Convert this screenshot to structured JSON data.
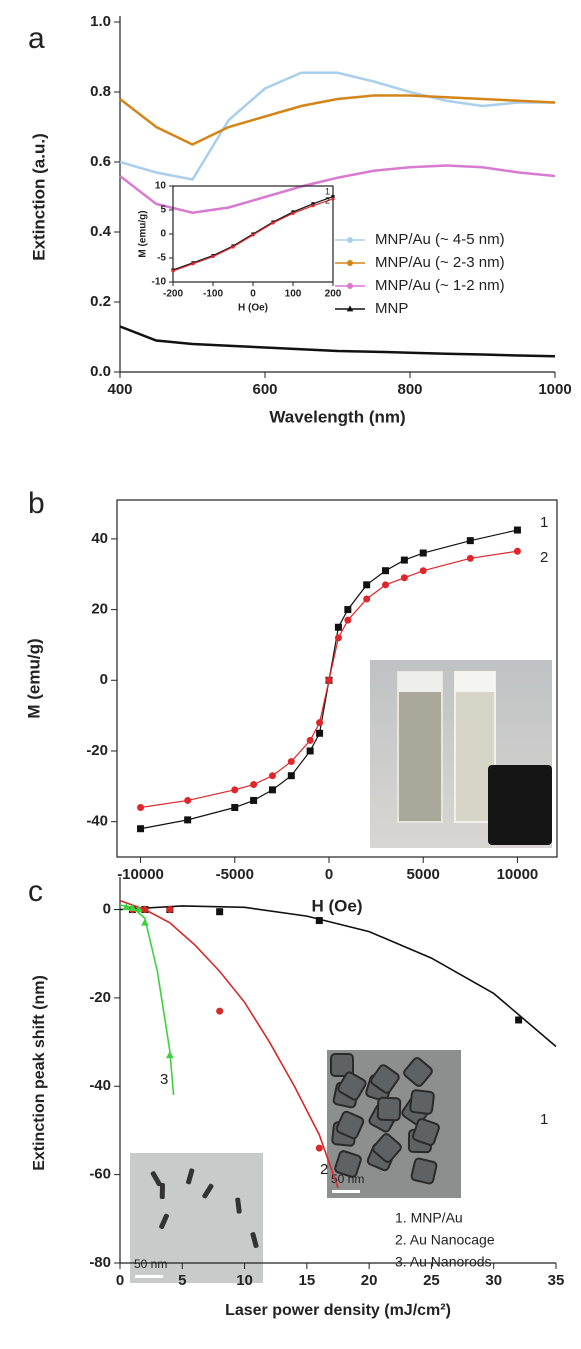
{
  "chart_data": [
    {
      "type": "line",
      "label": "a",
      "xlabel": "Wavelength (nm)",
      "ylabel": "Extinction (a.u.)",
      "x": [
        400,
        450,
        500,
        550,
        600,
        650,
        700,
        750,
        800,
        850,
        900,
        950,
        1000
      ],
      "xlim": [
        400,
        1000
      ],
      "xticks": [
        400,
        600,
        800,
        1000
      ],
      "ylim": [
        0,
        1
      ],
      "yticks": [
        {
          "value": 0,
          "label": "0.0"
        },
        {
          "value": 0.2,
          "label": "0.2"
        },
        {
          "value": 0.4,
          "label": "0.4"
        },
        {
          "value": 0.6,
          "label": "0.6"
        },
        {
          "value": 0.8,
          "label": "0.8"
        },
        {
          "value": 1,
          "label": "1.0"
        }
      ],
      "legend": "lower right",
      "series": [
        {
          "name": "MNP/Au (~ 4-5 nm)",
          "color": "#a9cfec",
          "marker": "circle",
          "values": [
            0.6,
            0.57,
            0.55,
            0.72,
            0.81,
            0.855,
            0.855,
            0.83,
            0.8,
            0.775,
            0.76,
            0.77,
            0.77
          ]
        },
        {
          "name": "MNP/Au (~ 2-3 nm)",
          "color": "#d4851a",
          "marker": "circle",
          "values": [
            0.78,
            0.7,
            0.65,
            0.7,
            0.73,
            0.76,
            0.78,
            0.79,
            0.79,
            0.785,
            0.78,
            0.775,
            0.77
          ]
        },
        {
          "name": "MNP/Au (~ 1-2 nm)",
          "color": "#d77ad0",
          "marker": "circle",
          "values": [
            0.56,
            0.48,
            0.455,
            0.47,
            0.5,
            0.53,
            0.555,
            0.575,
            0.585,
            0.59,
            0.585,
            0.57,
            0.56
          ]
        },
        {
          "name": "MNP",
          "color": "#111111",
          "marker": "triangle",
          "values": [
            0.13,
            0.09,
            0.08,
            0.075,
            0.07,
            0.065,
            0.06,
            0.058,
            0.055,
            0.052,
            0.05,
            0.047,
            0.045
          ]
        }
      ]
    },
    {
      "type": "line",
      "label": "b",
      "xlabel": "H (Oe)",
      "ylabel": "M (emu/g)",
      "box": true,
      "x": [
        -10000,
        -7500,
        -5000,
        -4000,
        -3000,
        -2000,
        -1000,
        -500,
        0,
        500,
        1000,
        2000,
        3000,
        4000,
        5000,
        7500,
        10000
      ],
      "xlim": [
        -11250,
        12100
      ],
      "xticks": [
        -10000,
        -5000,
        0,
        5000,
        10000
      ],
      "ylim": [
        -50,
        51
      ],
      "yticks": [
        -40,
        -20,
        0,
        20,
        40
      ],
      "series": [
        {
          "name": "1",
          "color": "#111111",
          "marker": "square",
          "values": [
            -42,
            -39.5,
            -36,
            -34,
            -31,
            -27,
            -20,
            -15,
            0,
            15,
            20,
            27,
            31,
            34,
            36,
            39.5,
            42.5
          ]
        },
        {
          "name": "2",
          "color": "#e0262a",
          "marker": "circle",
          "values": [
            -36,
            -34,
            -31,
            -29.5,
            -27,
            -23,
            -17,
            -12,
            0,
            12,
            17,
            23,
            27,
            29,
            31,
            34.5,
            36.5
          ]
        }
      ]
    },
    {
      "type": "line",
      "xlabel": "H (Oe)",
      "ylabel": "M (emu/g)",
      "box": true,
      "x": [
        -200,
        -150,
        -100,
        -50,
        0,
        50,
        100,
        150,
        200
      ],
      "xlim": [
        -200,
        200
      ],
      "xticks": [
        -200,
        -100,
        0,
        100,
        200
      ],
      "ylim": [
        -10,
        10
      ],
      "yticks": [
        -10,
        -5,
        0,
        5,
        10
      ],
      "series": [
        {
          "name": "1",
          "color": "#111111",
          "marker": "square",
          "values": [
            -7.5,
            -6,
            -4.5,
            -2.5,
            0,
            2.5,
            4.6,
            6.3,
            7.8
          ]
        },
        {
          "name": "2",
          "color": "#e0262a",
          "marker": "circle",
          "values": [
            -7.7,
            -6.2,
            -4.7,
            -2.7,
            -0.2,
            2.3,
            4.3,
            5.9,
            7.3
          ]
        }
      ]
    },
    {
      "type": "line",
      "label": "c",
      "xlabel": "Laser power density (mJ/cm²)",
      "ylabel": "Extinction peak shift (nm)",
      "xlim": [
        0,
        35
      ],
      "xticks": [
        0,
        5,
        10,
        15,
        20,
        25,
        30,
        35
      ],
      "ylim": [
        -80,
        6
      ],
      "yticks": [
        -80,
        -60,
        -40,
        -20,
        0
      ],
      "legend": "lower right",
      "series": [
        {
          "name": "1.  MNP/Au",
          "number": "1",
          "color": "#111111",
          "marker": "square",
          "line": false,
          "x": [
            1,
            2,
            4,
            8,
            16,
            32
          ],
          "values": [
            0,
            0,
            0,
            -0.5,
            -2.5,
            -25
          ],
          "fit_x": [
            0,
            5,
            10,
            15,
            20,
            25,
            30,
            35
          ],
          "fit_values": [
            0,
            0.8,
            0.5,
            -1.5,
            -5,
            -11,
            -19,
            -31
          ]
        },
        {
          "name": "2.  Au Nanocage",
          "number": "2",
          "color": "#d42a2a",
          "marker": "circle",
          "line": false,
          "x": [
            1,
            2,
            4,
            8,
            16
          ],
          "values": [
            0,
            0,
            0,
            -23,
            -54
          ],
          "fit_x": [
            0,
            2,
            4,
            6,
            8,
            10,
            12,
            14,
            16,
            17.5
          ],
          "fit_values": [
            2,
            0,
            -3,
            -8,
            -14,
            -21,
            -30,
            -40,
            -51,
            -63
          ]
        },
        {
          "name": "3.  Au Nanorods",
          "number": "3",
          "color": "#3ed13e",
          "marker": "triangle",
          "line": false,
          "x": [
            0.5,
            1,
            1.5,
            2,
            4
          ],
          "values": [
            0.5,
            0.3,
            0,
            -3,
            -33
          ],
          "fit_x": [
            0,
            1,
            2,
            3,
            4,
            4.3
          ],
          "fit_values": [
            1,
            0.5,
            -2,
            -14,
            -32,
            -42
          ]
        }
      ],
      "images": [
        {
          "scale_label": "50 nm"
        },
        {
          "scale_label": "50 nm"
        }
      ]
    }
  ]
}
